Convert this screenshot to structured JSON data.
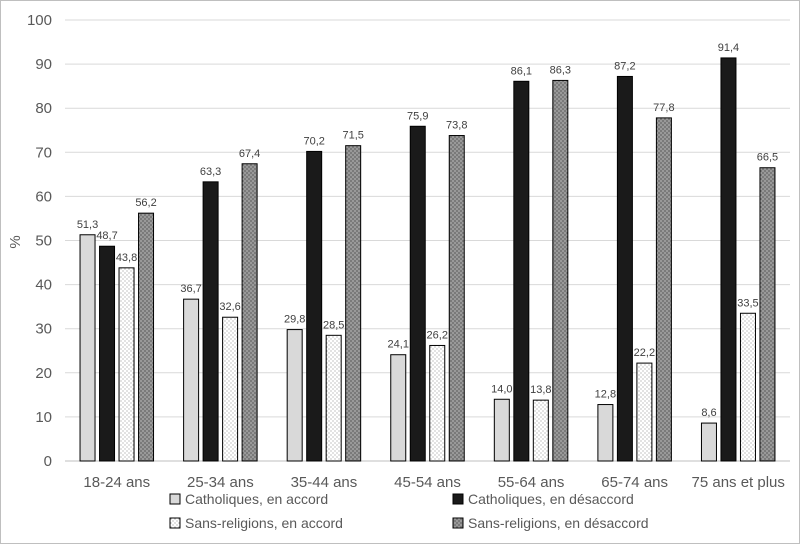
{
  "chart_data": {
    "type": "bar",
    "title": "",
    "xlabel": "",
    "ylabel": "%",
    "ylim": [
      0,
      100
    ],
    "yticks": [
      0,
      10,
      20,
      30,
      40,
      50,
      60,
      70,
      80,
      90,
      100
    ],
    "grid": true,
    "legend_position": "bottom",
    "categories": [
      "18-24 ans",
      "25-34 ans",
      "35-44 ans",
      "45-54 ans",
      "55-64 ans",
      "65-74 ans",
      "75 ans et plus"
    ],
    "series": [
      {
        "name": "Catholiques, en accord",
        "values": [
          51.3,
          36.7,
          29.8,
          24.1,
          14.0,
          12.8,
          8.6
        ],
        "labels": [
          "51,3",
          "36,7",
          "29,8",
          "24,1",
          "14,0",
          "12,8",
          "8,6"
        ],
        "color": "#d9d9d9",
        "pattern": "solid"
      },
      {
        "name": "Catholiques, en désaccord",
        "values": [
          48.7,
          63.3,
          70.2,
          75.9,
          86.1,
          87.2,
          91.4
        ],
        "labels": [
          "48,7",
          "63,3",
          "70,2",
          "75,9",
          "86,1",
          "87,2",
          "91,4"
        ],
        "color": "#1a1a1a",
        "pattern": "solid"
      },
      {
        "name": "Sans-religions, en accord",
        "values": [
          43.8,
          32.6,
          28.5,
          26.2,
          13.8,
          22.2,
          33.5
        ],
        "labels": [
          "43,8",
          "32,6",
          "28,5",
          "26,2",
          "13,8",
          "22,2",
          "33,5"
        ],
        "color": "#ffffff",
        "pattern": "light-dots"
      },
      {
        "name": "Sans-religions, en désaccord",
        "values": [
          56.2,
          67.4,
          71.5,
          73.8,
          86.3,
          77.8,
          66.5
        ],
        "labels": [
          "56,2",
          "67,4",
          "71,5",
          "73,8",
          "86,3",
          "77,8",
          "66,5"
        ],
        "color": "#808080",
        "pattern": "dark-dots"
      }
    ]
  }
}
